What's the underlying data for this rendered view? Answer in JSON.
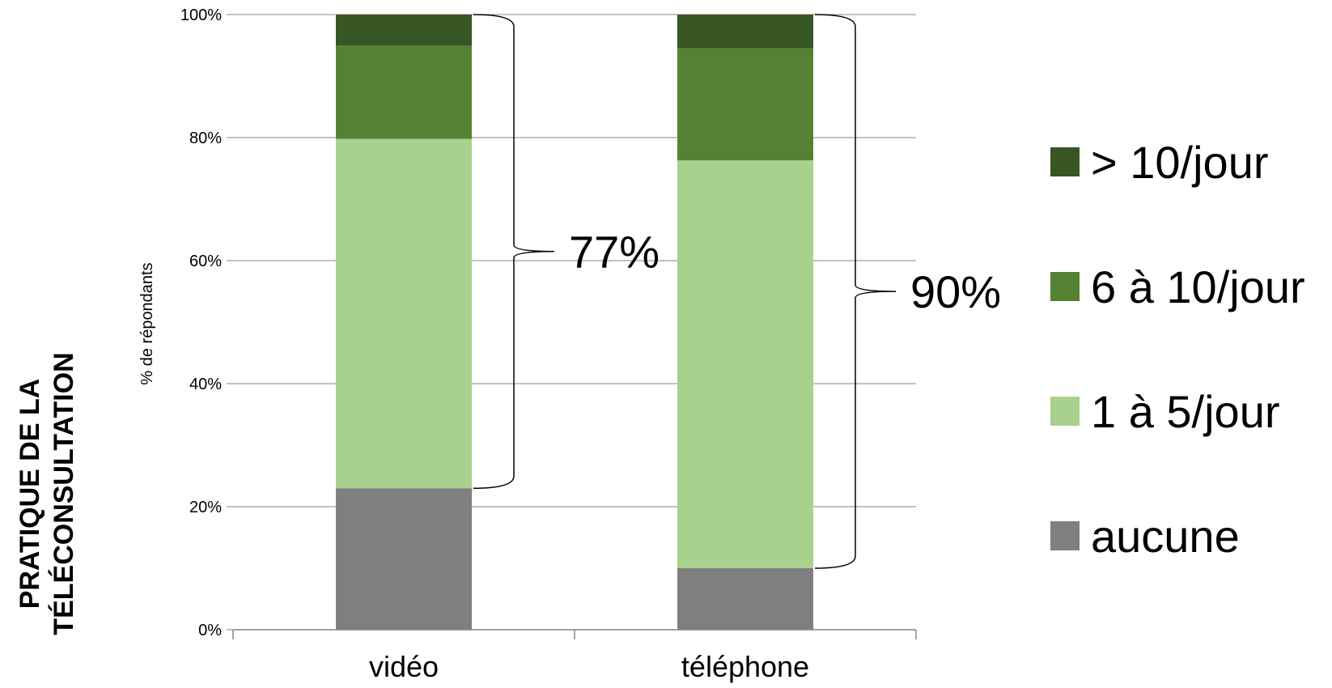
{
  "chart_data": {
    "type": "bar",
    "stacked": true,
    "percent_stacked": true,
    "title": "PRATIQUE DE LA TÉLÉCONSULTATION",
    "title_lines": [
      "PRATIQUE DE LA",
      "TÉLÉCONSULTATION"
    ],
    "ylabel": "% de répondants",
    "xlabel": "",
    "categories": [
      "vidéo",
      "téléphone"
    ],
    "ylim": [
      0,
      100
    ],
    "yticks": [
      "0%",
      "20%",
      "40%",
      "60%",
      "80%",
      "100%"
    ],
    "ytick_values": [
      0,
      20,
      40,
      60,
      80,
      100
    ],
    "grid": true,
    "legend_position": "right",
    "series": [
      {
        "name": "aucune",
        "values": [
          23,
          10
        ],
        "color": "#7f7f7f"
      },
      {
        "name": "1 à 5/jour",
        "values": [
          56.8,
          66.3
        ],
        "color": "#a9d18e"
      },
      {
        "name": "6 à 10/jour",
        "values": [
          15.2,
          18.2
        ],
        "color": "#548235"
      },
      {
        "name": "> 10/jour",
        "values": [
          5,
          5.5
        ],
        "color": "#375623"
      }
    ],
    "legend_order": [
      "> 10/jour",
      "6 à 10/jour",
      "1 à 5/jour",
      "aucune"
    ],
    "annotations": [
      {
        "text": "77%",
        "category": "vidéo",
        "from": 23,
        "to": 100
      },
      {
        "text": "90%",
        "category": "téléphone",
        "from": 10,
        "to": 100
      }
    ]
  }
}
